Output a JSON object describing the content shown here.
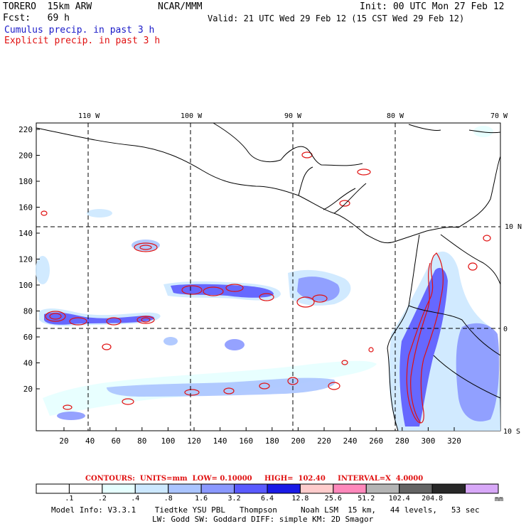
{
  "header": {
    "model": "TORERO  15km ARW",
    "org": "NCAR/MMM",
    "init": "Init: 00 UTC Mon 27 Feb 12",
    "fcst": "Fcst:   69 h",
    "valid": "Valid: 21 UTC Wed 29 Feb 12 (15 CST Wed 29 Feb 12)",
    "field1": "Cumulus precip. in past 3 h",
    "field2": "Explicit precip. in past 3 h"
  },
  "axes": {
    "lon_labels": [
      "110 W",
      "100 W",
      "90 W",
      "80 W",
      "70 W"
    ],
    "lat_labels": [
      "10 N",
      "0",
      "10 S"
    ],
    "y_ticks": [
      "220",
      "200",
      "180",
      "160",
      "140",
      "120",
      "100",
      "80",
      "60",
      "40",
      "20"
    ],
    "x_ticks": [
      "20",
      "40",
      "60",
      "80",
      "100",
      "120",
      "140",
      "160",
      "180",
      "200",
      "220",
      "240",
      "260",
      "280",
      "300",
      "320"
    ]
  },
  "contour_info": "CONTOURS:  UNITS=mm  LOW= 0.10000     HIGH=  102.40     INTERVAL=X  4.0000",
  "colorbar": {
    "labels": [
      ".1",
      ".2",
      ".4",
      ".8",
      "1.6",
      "3.2",
      "6.4",
      "12.8",
      "25.6",
      "51.2",
      "102.4",
      "204.8"
    ],
    "unit": "mm",
    "colors": [
      "#ffffff",
      "#ffffff",
      "#e6ffff",
      "#cce8ff",
      "#aac4ff",
      "#8a98ff",
      "#5a5aff",
      "#1a1ae6",
      "#ffcccc",
      "#ff88bb",
      "#b4b4b4",
      "#646464",
      "#282828",
      "#d8a8f8"
    ]
  },
  "footer": {
    "line1": "Model Info: V3.3.1    Tiedtke YSU PBL   Thompson     Noah LSM  15 km,   44 levels,   53 sec",
    "line2": "LW: Godd SW: Goddard DIFF: simple KM: 2D Smagor"
  },
  "colors": {
    "cumulus_text": "#1a1ac8",
    "explicit": "#e01010",
    "grid": "#000000"
  }
}
